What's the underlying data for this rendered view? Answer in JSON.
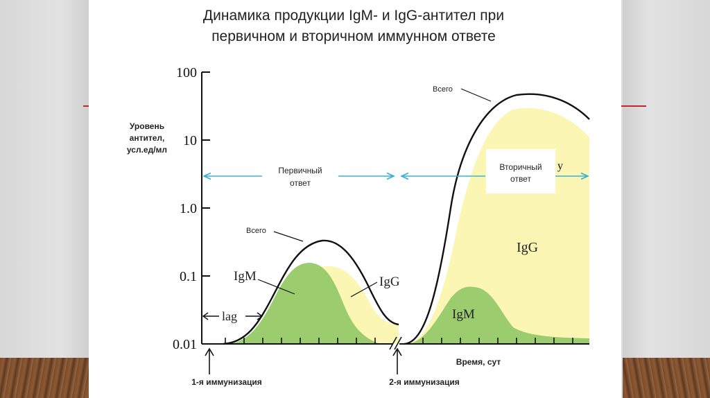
{
  "title_lines": [
    "Динамика продукции IgM- и IgG-антител при",
    "первичном и вторичном иммунном ответе"
  ],
  "y_axis": {
    "label_lines": [
      "Уровень",
      "антител,",
      "усл.ед/мл"
    ],
    "ticks": [
      "100",
      "10",
      "1.0",
      "0.1",
      "0.01"
    ],
    "scale": "log"
  },
  "x_axis_label": "Время, сут",
  "phases": {
    "primary_lines": [
      "Первичный",
      "ответ"
    ],
    "secondary_lines": [
      "Вторичный",
      "ответ"
    ]
  },
  "curve_labels": {
    "total_primary": "Всего",
    "total_secondary": "Всего",
    "igm_primary": "IgM",
    "igg_primary": "IgG",
    "igm_secondary": "IgM",
    "igg_secondary": "IgG",
    "partial_glyph": "y"
  },
  "lag_label": "lag",
  "events": [
    "1-я иммунизация",
    "2-я иммунизация"
  ],
  "colors": {
    "igm_fill": "#9bcc6e",
    "igg_fill": "#fbf6b3",
    "total_line": "#111111",
    "phase_arrow": "#3ab0d6",
    "accent_line": "#c0262d"
  }
}
